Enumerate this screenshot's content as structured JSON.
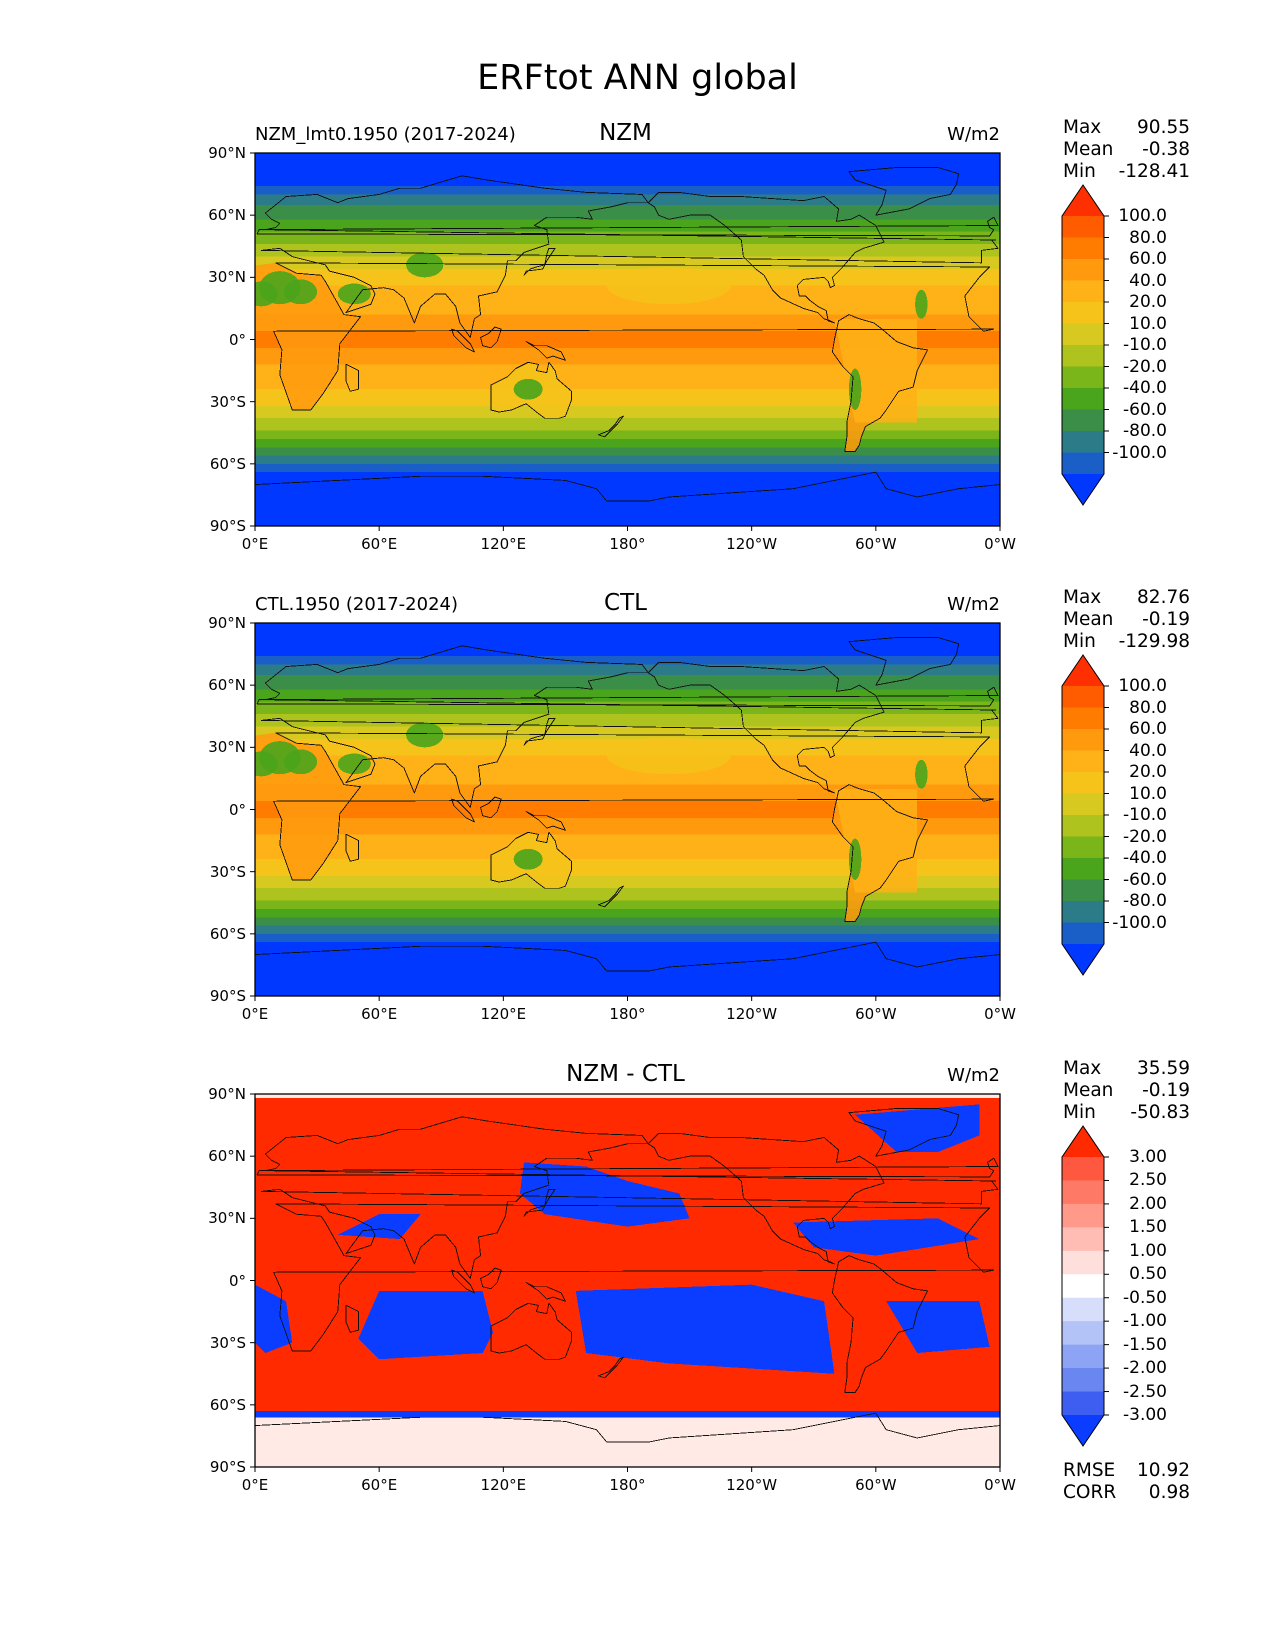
{
  "figure": {
    "title": "ERFtot ANN global"
  },
  "lat_ticks": [
    "90°N",
    "60°N",
    "30°N",
    "0°",
    "30°S",
    "60°S",
    "90°S"
  ],
  "lon_ticks": [
    "0°E",
    "60°E",
    "120°E",
    "180°",
    "120°W",
    "60°W",
    "0°W"
  ],
  "panels": [
    {
      "title": "NZM",
      "subtitle": "NZM_lmt0.1950 (2017-2024)",
      "units": "W/m2",
      "stats": [
        {
          "label": "Max",
          "value": "90.55"
        },
        {
          "label": "Mean",
          "value": "-0.38"
        },
        {
          "label": "Min",
          "value": "-128.41"
        }
      ],
      "colorbar": {
        "levels": [
          "100.0",
          "80.0",
          "60.0",
          "40.0",
          "20.0",
          "10.0",
          "-10.0",
          "-20.0",
          "-40.0",
          "-60.0",
          "-80.0",
          "-100.0"
        ],
        "colors": [
          "#fe2f00",
          "#ff5c00",
          "#ff7c00",
          "#ff9a0e",
          "#ffb217",
          "#f5c31a",
          "#d7c91f",
          "#aec31e",
          "#7ab51a",
          "#4aa41c",
          "#3a8e48",
          "#2c7b88",
          "#1a5fc8",
          "#0038ff"
        ]
      }
    },
    {
      "title": "CTL",
      "subtitle": "CTL.1950 (2017-2024)",
      "units": "W/m2",
      "stats": [
        {
          "label": "Max",
          "value": "82.76"
        },
        {
          "label": "Mean",
          "value": "-0.19"
        },
        {
          "label": "Min",
          "value": "-129.98"
        }
      ],
      "colorbar": {
        "levels": [
          "100.0",
          "80.0",
          "60.0",
          "40.0",
          "20.0",
          "10.0",
          "-10.0",
          "-20.0",
          "-40.0",
          "-60.0",
          "-80.0",
          "-100.0"
        ],
        "colors": [
          "#fe2f00",
          "#ff5c00",
          "#ff7c00",
          "#ff9a0e",
          "#ffb217",
          "#f5c31a",
          "#d7c91f",
          "#aec31e",
          "#7ab51a",
          "#4aa41c",
          "#3a8e48",
          "#2c7b88",
          "#1a5fc8",
          "#0038ff"
        ]
      }
    },
    {
      "title": "NZM - CTL",
      "subtitle": "",
      "units": "W/m2",
      "stats": [
        {
          "label": "Max",
          "value": "35.59"
        },
        {
          "label": "Mean",
          "value": "-0.19"
        },
        {
          "label": "Min",
          "value": "-50.83"
        }
      ],
      "extra_stats": [
        {
          "label": "RMSE",
          "value": "10.92"
        },
        {
          "label": "CORR",
          "value": "0.98"
        }
      ],
      "colorbar": {
        "levels": [
          "3.00",
          "2.50",
          "2.00",
          "1.50",
          "1.00",
          "0.50",
          "-0.50",
          "-1.00",
          "-1.50",
          "-2.00",
          "-2.50",
          "-3.00"
        ],
        "colors": [
          "#ff2a00",
          "#ff5840",
          "#ff7a66",
          "#ff998a",
          "#ffbdb3",
          "#ffdfdb",
          "#ffffff",
          "#d6defb",
          "#b3c2f7",
          "#8da3f3",
          "#6a86f0",
          "#3e5ef1",
          "#0a3dff"
        ]
      }
    }
  ],
  "chart_data": [
    {
      "type": "heatmap",
      "title": "NZM",
      "subtitle": "NZM_lmt0.1950 (2017-2024)",
      "units": "W/m2",
      "x_ticks": [
        "0°E",
        "60°E",
        "120°E",
        "180°",
        "120°W",
        "60°W",
        "0°W"
      ],
      "y_ticks": [
        "90°N",
        "60°N",
        "30°N",
        "0°",
        "30°S",
        "60°S",
        "90°S"
      ],
      "xlim": [
        0,
        360
      ],
      "ylim": [
        -90,
        90
      ],
      "levels": [
        -100,
        -80,
        -60,
        -40,
        -20,
        -10,
        10,
        20,
        40,
        60,
        80,
        100
      ],
      "max": 90.55,
      "mean": -0.38,
      "min": -128.41
    },
    {
      "type": "heatmap",
      "title": "CTL",
      "subtitle": "CTL.1950 (2017-2024)",
      "units": "W/m2",
      "x_ticks": [
        "0°E",
        "60°E",
        "120°E",
        "180°",
        "120°W",
        "60°W",
        "0°W"
      ],
      "y_ticks": [
        "90°N",
        "60°N",
        "30°N",
        "0°",
        "30°S",
        "60°S",
        "90°S"
      ],
      "xlim": [
        0,
        360
      ],
      "ylim": [
        -90,
        90
      ],
      "levels": [
        -100,
        -80,
        -60,
        -40,
        -20,
        -10,
        10,
        20,
        40,
        60,
        80,
        100
      ],
      "max": 82.76,
      "mean": -0.19,
      "min": -129.98
    },
    {
      "type": "heatmap",
      "title": "NZM - CTL",
      "units": "W/m2",
      "x_ticks": [
        "0°E",
        "60°E",
        "120°E",
        "180°",
        "120°W",
        "60°W",
        "0°W"
      ],
      "y_ticks": [
        "90°N",
        "60°N",
        "30°N",
        "0°",
        "30°S",
        "60°S",
        "90°S"
      ],
      "xlim": [
        0,
        360
      ],
      "ylim": [
        -90,
        90
      ],
      "levels": [
        -3,
        -2.5,
        -2,
        -1.5,
        -1,
        -0.5,
        0.5,
        1,
        1.5,
        2,
        2.5,
        3
      ],
      "max": 35.59,
      "mean": -0.19,
      "min": -50.83,
      "rmse": 10.92,
      "corr": 0.98
    }
  ]
}
